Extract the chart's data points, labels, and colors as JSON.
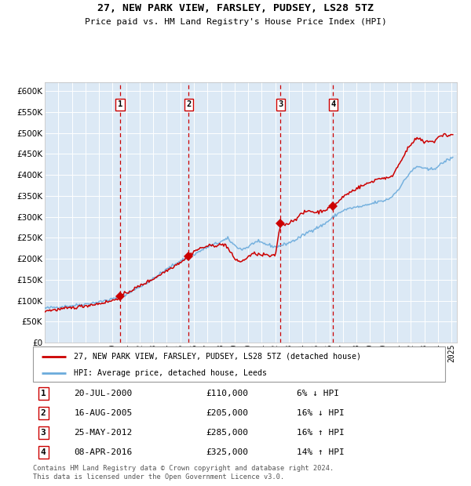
{
  "title": "27, NEW PARK VIEW, FARSLEY, PUDSEY, LS28 5TZ",
  "subtitle": "Price paid vs. HM Land Registry's House Price Index (HPI)",
  "legend_label_red": "27, NEW PARK VIEW, FARSLEY, PUDSEY, LS28 5TZ (detached house)",
  "legend_label_blue": "HPI: Average price, detached house, Leeds",
  "footer": "Contains HM Land Registry data © Crown copyright and database right 2024.\nThis data is licensed under the Open Government Licence v3.0.",
  "transactions": [
    {
      "num": 1,
      "date": "20-JUL-2000",
      "price": 110000,
      "pct": "6%",
      "dir": "↓",
      "year": 2000.55
    },
    {
      "num": 2,
      "date": "16-AUG-2005",
      "price": 205000,
      "pct": "16%",
      "dir": "↓",
      "year": 2005.62
    },
    {
      "num": 3,
      "date": "25-MAY-2012",
      "price": 285000,
      "pct": "16%",
      "dir": "↑",
      "year": 2012.4
    },
    {
      "num": 4,
      "date": "08-APR-2016",
      "price": 325000,
      "pct": "14%",
      "dir": "↑",
      "year": 2016.27
    }
  ],
  "ylim": [
    0,
    620000
  ],
  "yticks": [
    0,
    50000,
    100000,
    150000,
    200000,
    250000,
    300000,
    350000,
    400000,
    450000,
    500000,
    550000,
    600000
  ],
  "xlim_start": 1995.0,
  "xlim_end": 2025.4,
  "background_color": "#ffffff",
  "plot_bg_color": "#dce9f5",
  "grid_color": "#ffffff",
  "red_color": "#cc0000",
  "blue_color": "#6babdc",
  "vline_color": "#cc0000",
  "marker_color": "#cc0000",
  "hpi_anchors": [
    [
      1995.0,
      82000
    ],
    [
      1996.0,
      85000
    ],
    [
      1997.0,
      88000
    ],
    [
      1998.0,
      92000
    ],
    [
      1999.0,
      97000
    ],
    [
      2000.0,
      104000
    ],
    [
      2001.0,
      115000
    ],
    [
      2002.0,
      133000
    ],
    [
      2003.0,
      152000
    ],
    [
      2004.0,
      175000
    ],
    [
      2005.0,
      195000
    ],
    [
      2006.0,
      210000
    ],
    [
      2007.0,
      228000
    ],
    [
      2007.8,
      238000
    ],
    [
      2008.5,
      248000
    ],
    [
      2009.0,
      232000
    ],
    [
      2009.5,
      222000
    ],
    [
      2010.0,
      228000
    ],
    [
      2010.5,
      240000
    ],
    [
      2011.0,
      238000
    ],
    [
      2011.5,
      233000
    ],
    [
      2012.0,
      228000
    ],
    [
      2012.5,
      232000
    ],
    [
      2013.0,
      238000
    ],
    [
      2013.5,
      245000
    ],
    [
      2014.0,
      255000
    ],
    [
      2014.5,
      265000
    ],
    [
      2015.0,
      273000
    ],
    [
      2015.5,
      280000
    ],
    [
      2016.0,
      292000
    ],
    [
      2016.5,
      305000
    ],
    [
      2017.0,
      315000
    ],
    [
      2017.5,
      320000
    ],
    [
      2018.0,
      323000
    ],
    [
      2018.5,
      325000
    ],
    [
      2019.0,
      330000
    ],
    [
      2019.5,
      335000
    ],
    [
      2020.0,
      338000
    ],
    [
      2020.5,
      345000
    ],
    [
      2021.0,
      362000
    ],
    [
      2021.5,
      385000
    ],
    [
      2022.0,
      408000
    ],
    [
      2022.5,
      420000
    ],
    [
      2022.8,
      418000
    ],
    [
      2023.0,
      415000
    ],
    [
      2023.3,
      412000
    ],
    [
      2023.7,
      415000
    ],
    [
      2024.0,
      420000
    ],
    [
      2024.5,
      432000
    ],
    [
      2025.0,
      440000
    ]
  ],
  "prop_anchors": [
    [
      1995.0,
      76000
    ],
    [
      1996.0,
      79000
    ],
    [
      1997.0,
      83000
    ],
    [
      1998.0,
      88000
    ],
    [
      1999.0,
      93000
    ],
    [
      2000.0,
      100000
    ],
    [
      2000.55,
      110000
    ],
    [
      2001.0,
      118000
    ],
    [
      2002.0,
      135000
    ],
    [
      2003.0,
      152000
    ],
    [
      2004.0,
      172000
    ],
    [
      2005.0,
      192000
    ],
    [
      2005.62,
      205000
    ],
    [
      2006.0,
      218000
    ],
    [
      2006.5,
      225000
    ],
    [
      2007.0,
      230000
    ],
    [
      2007.5,
      232000
    ],
    [
      2008.0,
      233000
    ],
    [
      2008.3,
      235000
    ],
    [
      2009.0,
      200000
    ],
    [
      2009.5,
      192000
    ],
    [
      2010.0,
      205000
    ],
    [
      2010.5,
      213000
    ],
    [
      2011.0,
      208000
    ],
    [
      2011.3,
      210000
    ],
    [
      2011.7,
      205000
    ],
    [
      2012.0,
      208000
    ],
    [
      2012.4,
      285000
    ],
    [
      2012.8,
      282000
    ],
    [
      2013.0,
      285000
    ],
    [
      2013.5,
      295000
    ],
    [
      2014.0,
      308000
    ],
    [
      2014.5,
      315000
    ],
    [
      2015.0,
      310000
    ],
    [
      2015.5,
      315000
    ],
    [
      2016.0,
      320000
    ],
    [
      2016.27,
      325000
    ],
    [
      2016.8,
      340000
    ],
    [
      2017.0,
      348000
    ],
    [
      2017.5,
      358000
    ],
    [
      2018.0,
      368000
    ],
    [
      2018.5,
      375000
    ],
    [
      2019.0,
      382000
    ],
    [
      2019.5,
      390000
    ],
    [
      2020.0,
      393000
    ],
    [
      2020.5,
      392000
    ],
    [
      2021.0,
      418000
    ],
    [
      2021.5,
      448000
    ],
    [
      2022.0,
      472000
    ],
    [
      2022.5,
      488000
    ],
    [
      2022.8,
      482000
    ],
    [
      2023.0,
      476000
    ],
    [
      2023.3,
      482000
    ],
    [
      2023.7,
      478000
    ],
    [
      2024.0,
      488000
    ],
    [
      2024.5,
      498000
    ],
    [
      2024.8,
      492000
    ],
    [
      2025.0,
      496000
    ]
  ]
}
